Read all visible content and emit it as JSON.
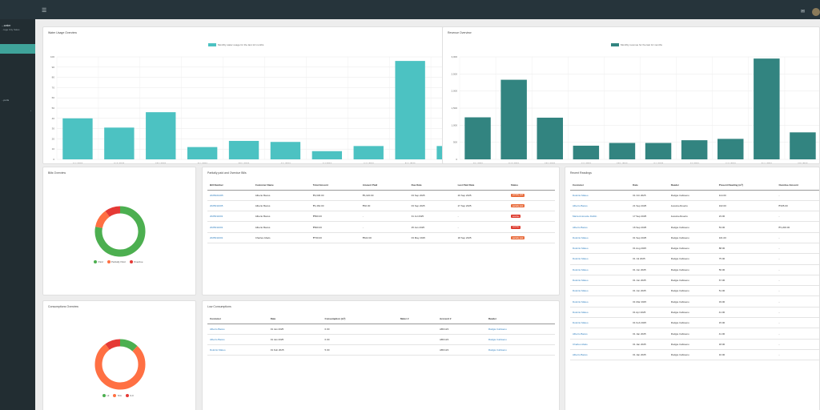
{
  "header": {
    "menu_icon": "hamburger-icon",
    "chat_icon": "chat-icon"
  },
  "sidebar": {
    "brand": "...water",
    "brand_sub": "...lage City Sales",
    "items": [
      {
        "label": ""
      },
      {
        "label": ""
      },
      {
        "label": "...ports"
      }
    ]
  },
  "water_usage": {
    "title": "Water Usage Overview",
    "legend": "Monthly water usage for the last 12 months",
    "color": "#4cc2c2"
  },
  "revenue": {
    "title": "Revenue Overview",
    "legend": "Monthly revenue for the last 12 months",
    "color": "#328480"
  },
  "chart_data": [
    {
      "type": "bar",
      "title": "Water Usage Overview",
      "categories": [
        "Jan 2024",
        "Feb 2024",
        "Mar 2024",
        "Apr 2024",
        "May 2024",
        "Jun 2024",
        "Jul 2024",
        "Aug 2024",
        "Sep 2024",
        "Oct 2024"
      ],
      "series": [
        {
          "name": "Monthly water usage for the last 12 months",
          "values": [
            40,
            31,
            46,
            12,
            18,
            17,
            8,
            13,
            96,
            13
          ]
        }
      ],
      "yticks": [
        0,
        10,
        20,
        30,
        40,
        50,
        60,
        70,
        80,
        90,
        100
      ],
      "ylim": [
        0,
        100
      ]
    },
    {
      "type": "bar",
      "title": "Revenue Overview",
      "categories": [
        "Jan 2024",
        "Feb 2024",
        "Mar 2024",
        "Apr 2024",
        "May 2024",
        "Jun 2024",
        "Jul 2024",
        "Aug 2024",
        "Sep 2024",
        "Oct 2024"
      ],
      "series": [
        {
          "name": "Monthly revenue for the last 12 months",
          "values": [
            1230,
            2330,
            1220,
            400,
            480,
            480,
            560,
            600,
            2950,
            790
          ]
        }
      ],
      "yticks": [
        "0",
        "500",
        "1,000",
        "1,500",
        "2,000",
        "2,500",
        "3,000"
      ],
      "ylim": [
        0,
        3000
      ]
    },
    {
      "type": "pie",
      "title": "Bills Overview",
      "categories": [
        "Paid",
        "Partially Paid",
        "Overdue"
      ],
      "values": [
        78,
        12,
        10
      ],
      "colors": [
        "#4caf50",
        "#ff7043",
        "#e53935"
      ]
    },
    {
      "type": "pie",
      "title": "Consumptions Overview",
      "categories": [
        "Hi",
        "N/A",
        "0-0"
      ],
      "values": [
        12,
        78,
        10
      ],
      "colors": [
        "#4caf50",
        "#ff7043",
        "#e53935"
      ]
    }
  ],
  "bills": {
    "title": "Bills Overview"
  },
  "consumptions": {
    "title": "Consumptions Overview"
  },
  "partial": {
    "title": "Partially paid and Overdue Bills",
    "headers": [
      "Bill Number",
      "Customer Name",
      "Total Amount",
      "Amount Paid",
      "Due Date",
      "Last Paid Date",
      "Status"
    ],
    "rows": [
      [
        "2025021005",
        "Alberto Bacus",
        "₱2,036.00",
        "₱1,020.00",
        "03 Sep 2025",
        "20 Sep 2025",
        "partially paid"
      ],
      [
        "2025011005",
        "Alberto Bacus",
        "₱1,464.00",
        "₱32.00",
        "03 Sep 2025",
        "27 Sep 2025",
        "partially paid"
      ],
      [
        "2025011001",
        "Alberto Bacus",
        "₱560.00",
        "-",
        "31 Jul 2025",
        "-",
        "overdue"
      ],
      [
        "2025011001",
        "Alberto Bacus",
        "₱600.00",
        "-",
        "25 Jan 2025",
        "-",
        "overdue"
      ],
      [
        "2025011001",
        "Charles Abalo",
        "₱730.00",
        "₱422.00",
        "03 May 2025",
        "18 Sep 2025",
        "partially paid"
      ]
    ]
  },
  "low": {
    "title": "Low Consumptions",
    "headers": [
      "Customer",
      "Date",
      "Consumption (m³)",
      "Meter #",
      "Account #",
      "Reader"
    ],
    "rows": [
      [
        "Alberto Bacus",
        "01 Jan 2025",
        "0.00",
        "",
        "ABC123",
        "Rodgie Cabiseno"
      ],
      [
        "Alberto Bacus",
        "01 Jan 2025",
        "0.00",
        "",
        "ABC123",
        "Rodgie Cabiseno"
      ],
      [
        "Dolorito Mateo",
        "01 Feb 2025",
        "5.00",
        "",
        "ABC123",
        "Rodgie Cabiseno"
      ]
    ]
  },
  "readings": {
    "title": "Recent Readings",
    "headers": [
      "Customer",
      "Date",
      "Reader",
      "Present Reading (m³)",
      "Overdue Amount"
    ],
    "rows": [
      [
        "Dolorito Mateo",
        "01 Oct 2025",
        "Rodgie Cabiseno",
        "114.00",
        "-"
      ],
      [
        "Alberto Bacus",
        "21 Sep 2025",
        "Jessica Abuerto",
        "102.00",
        "₱105.00"
      ],
      [
        "Maria Antonette Dublin",
        "17 Sep 2025",
        "Jessica Abuerto",
        "23.00",
        "-"
      ],
      [
        "Alberto Bacus",
        "16 Sep 2025",
        "Rodgie Cabiseno",
        "53.00",
        "₱1,200.00"
      ],
      [
        "Dolorito Mateo",
        "01 Sep 2025",
        "Rodgie Cabiseno",
        "101.00",
        "-"
      ],
      [
        "Dolorito Mateo",
        "01 Aug 2025",
        "Rodgie Cabiseno",
        "88.00",
        "-"
      ],
      [
        "Dolorito Mateo",
        "01 Jul 2025",
        "Rodgie Cabiseno",
        "75.00",
        "-"
      ],
      [
        "Dolorito Mateo",
        "01 Jun 2025",
        "Rodgie Cabiseno",
        "56.00",
        "-"
      ],
      [
        "Dolorito Mateo",
        "01 Jun 2025",
        "Rodgie Cabiseno",
        "67.00",
        "-"
      ],
      [
        "Dolorito Mateo",
        "01 Jun 2025",
        "Rodgie Cabiseno",
        "51.00",
        "-"
      ],
      [
        "Dolorito Mateo",
        "01 Mar 2025",
        "Rodgie Cabiseno",
        "33.00",
        "-"
      ],
      [
        "Dolorito Mateo",
        "01 Apr 2025",
        "Rodgie Cabiseno",
        "41.00",
        "-"
      ],
      [
        "Dolorito Mateo",
        "01 Feb 2025",
        "Rodgie Cabiseno",
        "15.00",
        "-"
      ],
      [
        "Alberto Bacus",
        "01 Jan 2025",
        "Rodgie Cabiseno",
        "41.00",
        "-"
      ],
      [
        "Charles Abalo",
        "01 Jan 2025",
        "Rodgie Cabiseno",
        "18.00",
        "-"
      ],
      [
        "Alberto Bacus",
        "01 Jan 2025",
        "Rodgie Cabiseno",
        "10.00",
        "-"
      ]
    ]
  }
}
